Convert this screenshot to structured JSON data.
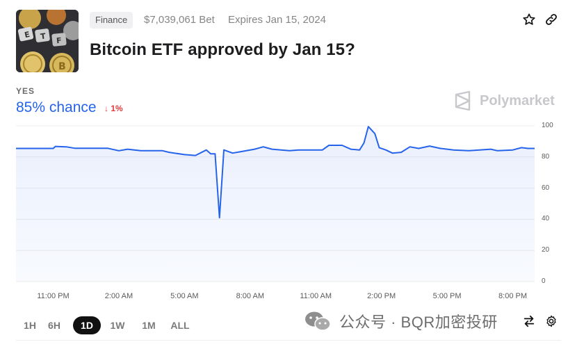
{
  "market": {
    "category": "Finance",
    "volume": "$7,039,061 Bet",
    "expiry": "Expires Jan 15, 2024",
    "title": "Bitcoin ETF approved by Jan 15?",
    "thumbnail_icon": "bitcoin-etf-image"
  },
  "header_actions": {
    "star_icon": "star-icon",
    "link_icon": "link-icon"
  },
  "outcome": {
    "label": "YES",
    "chance": "85% chance",
    "delta": "1%",
    "delta_direction": "down",
    "delta_color": "#e23b3b"
  },
  "brand": {
    "name": "Polymarket",
    "logo_icon": "polymarket-logo-icon"
  },
  "chart_data": {
    "type": "area",
    "color": "#2563eb",
    "ylim": [
      0,
      100
    ],
    "y_ticks": [
      "100",
      "80",
      "60",
      "40",
      "20",
      "0"
    ],
    "x_ticks": [
      "11:00 PM",
      "2:00 AM",
      "5:00 AM",
      "8:00 AM",
      "11:00 AM",
      "2:00 PM",
      "5:00 PM",
      "8:00 PM"
    ],
    "x_range_hours": [
      -1.7,
      22.0
    ],
    "points": [
      [
        -1.7,
        85.5
      ],
      [
        -0.5,
        85.5
      ],
      [
        0.0,
        85.5
      ],
      [
        0.1,
        86.8
      ],
      [
        0.6,
        86.5
      ],
      [
        1.0,
        85.6
      ],
      [
        2.5,
        85.6
      ],
      [
        3.0,
        84.0
      ],
      [
        3.4,
        85.0
      ],
      [
        4.0,
        84.0
      ],
      [
        5.0,
        84.0
      ],
      [
        5.3,
        83.0
      ],
      [
        6.0,
        81.5
      ],
      [
        6.5,
        81.0
      ],
      [
        7.0,
        84.5
      ],
      [
        7.2,
        82.0
      ],
      [
        7.4,
        82.0
      ],
      [
        7.6,
        41.0
      ],
      [
        7.8,
        84.5
      ],
      [
        8.2,
        82.5
      ],
      [
        8.6,
        83.5
      ],
      [
        9.2,
        85.0
      ],
      [
        9.6,
        86.5
      ],
      [
        10.0,
        85.0
      ],
      [
        10.8,
        84.0
      ],
      [
        11.2,
        84.5
      ],
      [
        12.3,
        84.5
      ],
      [
        12.6,
        87.5
      ],
      [
        13.2,
        87.5
      ],
      [
        13.6,
        85.0
      ],
      [
        14.0,
        84.5
      ],
      [
        14.2,
        89.0
      ],
      [
        14.4,
        99.5
      ],
      [
        14.7,
        95.0
      ],
      [
        14.9,
        86.0
      ],
      [
        15.2,
        84.5
      ],
      [
        15.5,
        82.5
      ],
      [
        15.9,
        83.0
      ],
      [
        16.3,
        86.5
      ],
      [
        16.7,
        85.5
      ],
      [
        17.2,
        87.0
      ],
      [
        17.7,
        85.5
      ],
      [
        18.3,
        84.5
      ],
      [
        19.0,
        84.0
      ],
      [
        20.0,
        85.0
      ],
      [
        20.3,
        84.0
      ],
      [
        21.0,
        84.5
      ],
      [
        21.4,
        86.0
      ],
      [
        21.7,
        85.5
      ],
      [
        22.0,
        85.5
      ]
    ]
  },
  "ranges": [
    {
      "label": "1H",
      "active": false
    },
    {
      "label": "6H",
      "active": false
    },
    {
      "label": "1D",
      "active": true
    },
    {
      "label": "1W",
      "active": false
    },
    {
      "label": "1M",
      "active": false
    },
    {
      "label": "ALL",
      "active": false
    }
  ],
  "controls": {
    "swap_icon": "swap-arrows-icon",
    "settings_icon": "gear-icon"
  },
  "overlay_watermark": {
    "text": "公众号 · BQR加密投研",
    "icon": "wechat-icon"
  }
}
